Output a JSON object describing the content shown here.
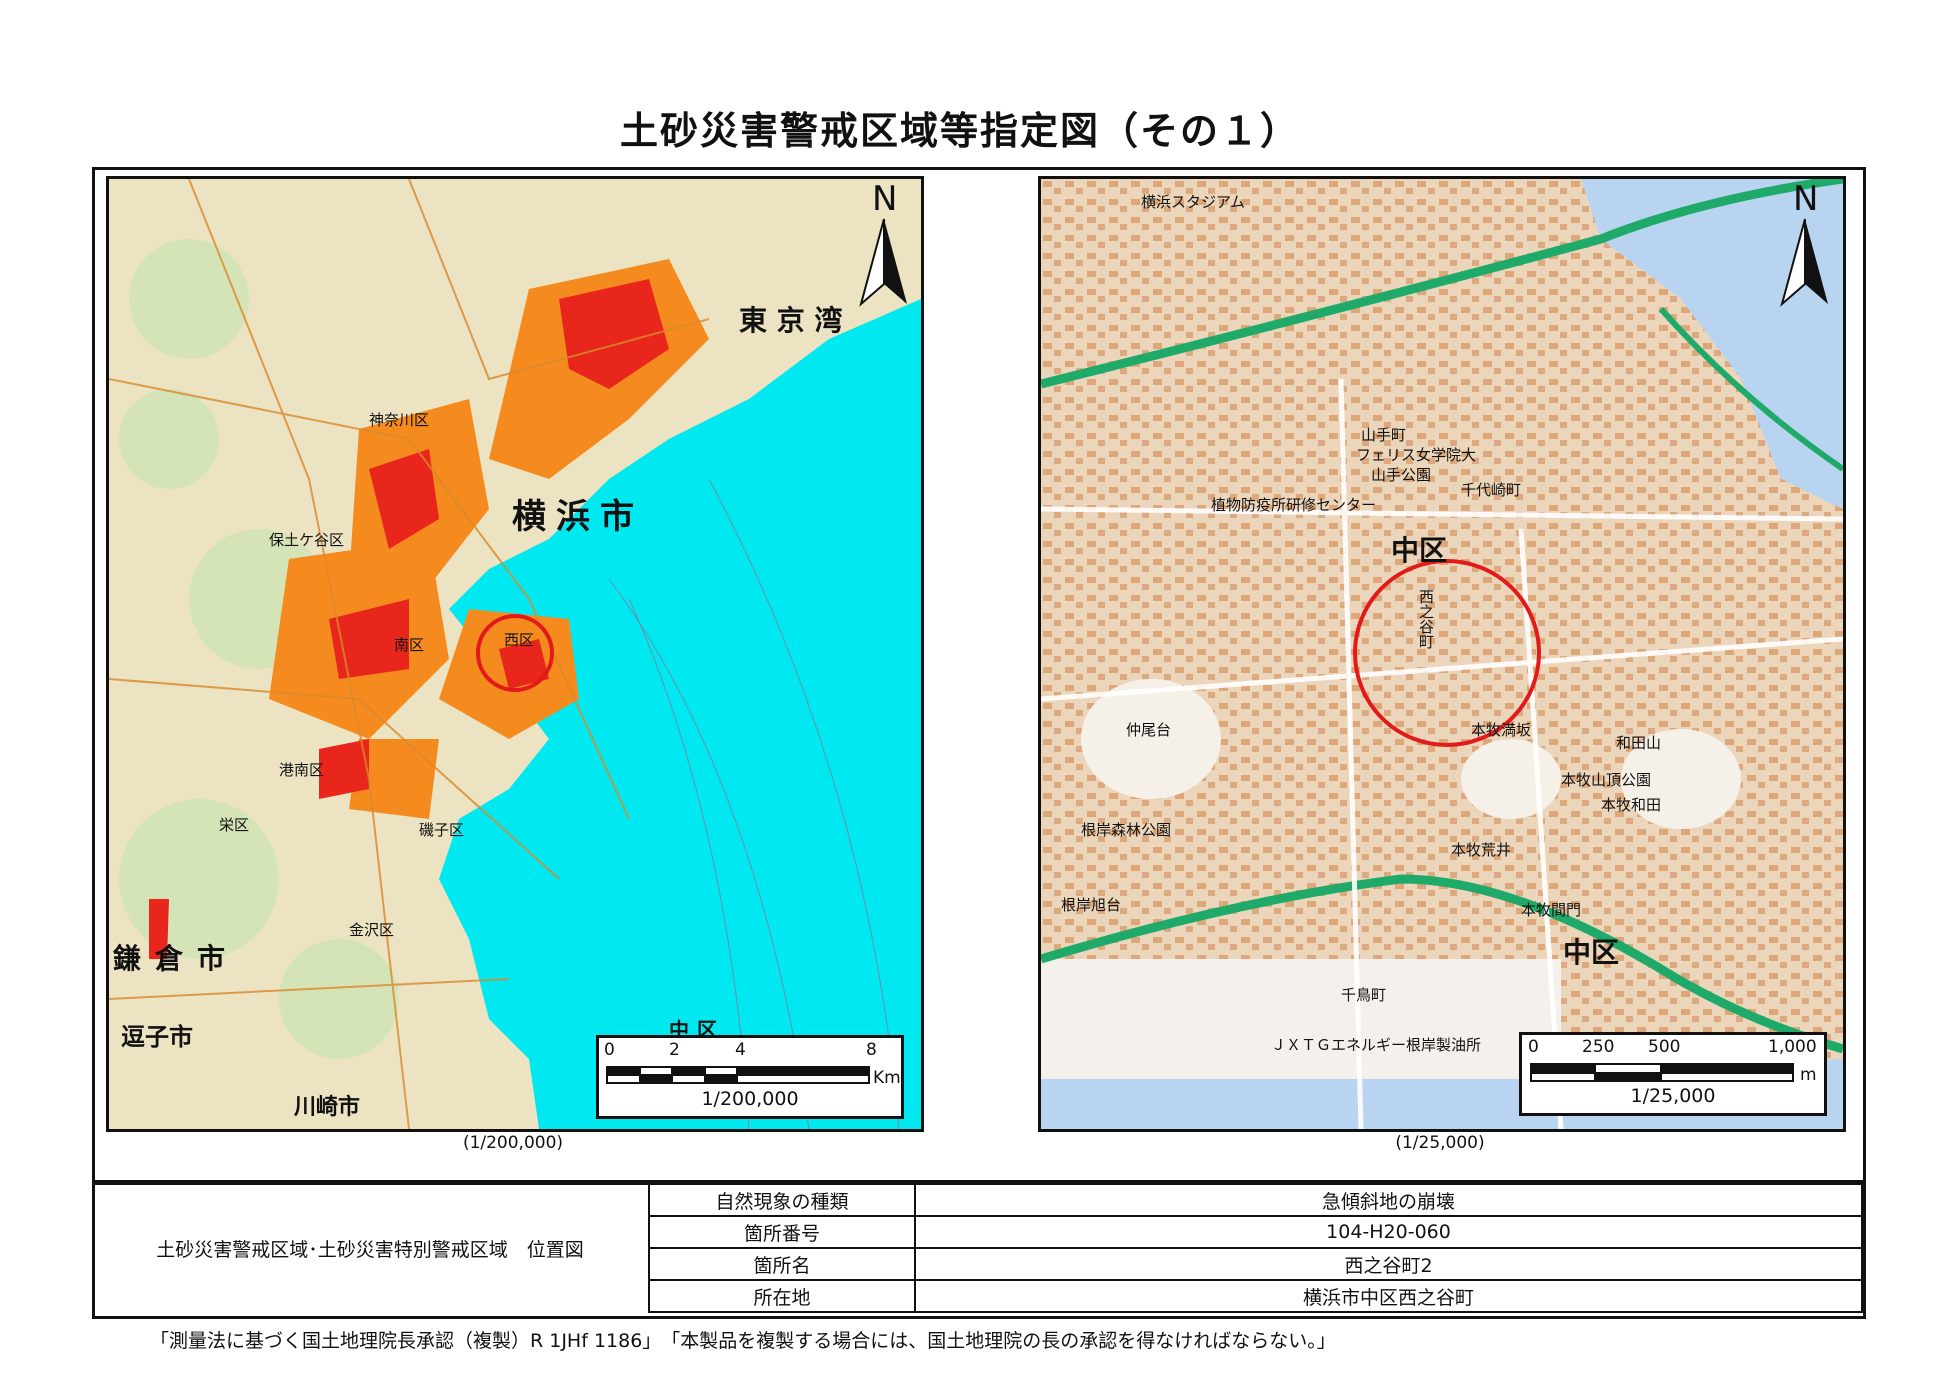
{
  "title": "土砂災害警戒区域等指定図（その１）",
  "left_map": {
    "labels": [
      "横浜市",
      "鎌倉市",
      "逗子市",
      "川崎市",
      "東 京 湾",
      "中区",
      "西区",
      "南区",
      "港南区",
      "栄区",
      "金沢区",
      "保土ケ谷区",
      "神奈川区",
      "磯子区"
    ],
    "north_label": "N",
    "scale": {
      "ticks": [
        "0",
        "2",
        "4",
        "8"
      ],
      "unit": "Km",
      "ratio": "1/200,000"
    },
    "caption": "(1/200,000)",
    "sea_color": "#00e8f0",
    "hazard_colors": [
      "#f58a1f",
      "#e8261c"
    ],
    "marker_color": "#e21a1a"
  },
  "right_map": {
    "labels": [
      "中区",
      "中区",
      "西之谷町",
      "山手町",
      "本牧満坂",
      "根岸森林公園",
      "本牧荒井",
      "本牧和田",
      "千代崎町",
      "植物防疫所研修センター",
      "フェリス女学院大",
      "山手公園",
      "横浜スタジアム",
      "本牧山頂公園",
      "ＪＸＴＧエネルギー根岸製油所",
      "千鳥町",
      "仲尾台",
      "本牧間門",
      "和田山",
      "根岸旭台"
    ],
    "north_label": "N",
    "scale": {
      "ticks": [
        "0",
        "250",
        "500",
        "1,000"
      ],
      "unit": "m",
      "ratio": "1/25,000"
    },
    "caption": "(1/25,000)",
    "marker_color": "#e21a1a"
  },
  "info_table": {
    "heading": "土砂災害警戒区域･土砂災害特別警戒区域　位置図",
    "rows": [
      {
        "label": "自然現象の種類",
        "value": "急傾斜地の崩壊"
      },
      {
        "label": "箇所番号",
        "value": "104-H20-060"
      },
      {
        "label": "箇所名",
        "value": "西之谷町2"
      },
      {
        "label": "所在地",
        "value": "横浜市中区西之谷町"
      }
    ]
  },
  "footer": "「測量法に基づく国土地理院長承認（複製）R 1JHf 1186」　「本製品を複製する場合には、国土地理院の長の承認を得なければならない。」"
}
